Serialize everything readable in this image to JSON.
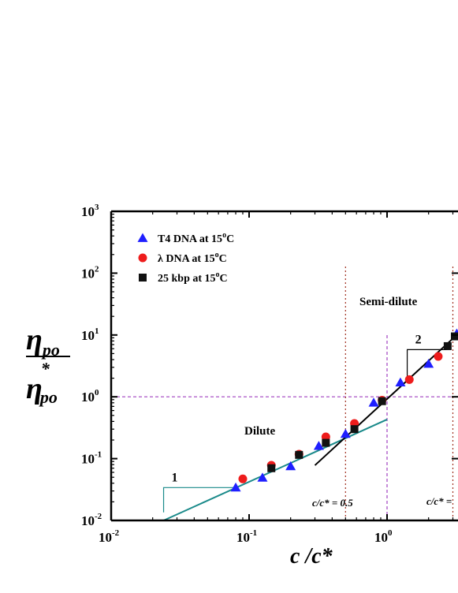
{
  "chart_data": {
    "type": "scatter",
    "x_scale": "log",
    "y_scale": "log",
    "xlim": [
      0.01,
      3.2
    ],
    "ylim": [
      0.01,
      1000
    ],
    "xlabel": "c /c*",
    "ylabel_numerator": "η",
    "ylabel_numerator_sub": "po",
    "ylabel_denominator": "η",
    "ylabel_denominator_sup": "*",
    "ylabel_denominator_sub": "po",
    "x_ticks": [
      {
        "value": 0.01,
        "base": "10",
        "exp": "-2"
      },
      {
        "value": 0.1,
        "base": "10",
        "exp": "-1"
      },
      {
        "value": 1,
        "base": "10",
        "exp": "0"
      }
    ],
    "y_ticks": [
      {
        "value": 0.01,
        "base": "10",
        "exp": "-2"
      },
      {
        "value": 0.1,
        "base": "10",
        "exp": "-1"
      },
      {
        "value": 1,
        "base": "10",
        "exp": "0"
      },
      {
        "value": 10,
        "base": "10",
        "exp": "1"
      },
      {
        "value": 100,
        "base": "10",
        "exp": "2"
      },
      {
        "value": 1000,
        "base": "10",
        "exp": "3"
      }
    ],
    "legend_position": "top-left",
    "series": [
      {
        "name": "T4 DNA at 15°C",
        "legend_main": "T4 DNA at 15",
        "marker": "triangle",
        "color": "#1f1fff",
        "points": [
          [
            0.08,
            0.034
          ],
          [
            0.125,
            0.049
          ],
          [
            0.2,
            0.075
          ],
          [
            0.32,
            0.16
          ],
          [
            0.5,
            0.25
          ],
          [
            0.8,
            0.8
          ],
          [
            1.25,
            1.7
          ],
          [
            2.0,
            3.4
          ],
          [
            3.2,
            10.5
          ]
        ]
      },
      {
        "name": "λ DNA at 15°C",
        "legend_main": "λ DNA at 15",
        "marker": "circle",
        "color": "#ee1c1c",
        "points": [
          [
            0.09,
            0.047
          ],
          [
            0.145,
            0.078
          ],
          [
            0.23,
            0.118
          ],
          [
            0.36,
            0.225
          ],
          [
            0.58,
            0.37
          ],
          [
            0.92,
            0.88
          ],
          [
            1.45,
            1.9
          ],
          [
            2.35,
            4.5
          ]
        ]
      },
      {
        "name": "25 kbp at 15°C",
        "legend_main": "25 kbp at 15",
        "marker": "square",
        "color": "#111111",
        "points": [
          [
            0.145,
            0.07
          ],
          [
            0.23,
            0.115
          ],
          [
            0.36,
            0.18
          ],
          [
            0.58,
            0.3
          ],
          [
            0.92,
            0.85
          ],
          [
            2.75,
            6.6
          ],
          [
            3.1,
            9.5
          ]
        ]
      }
    ],
    "degree_sup": "o",
    "degree_suffix": "C",
    "fit_lines": [
      {
        "label": "dilute-fit",
        "color": "#1a8a8a",
        "x": [
          0.024,
          1.0
        ],
        "y": [
          0.01,
          0.43
        ]
      },
      {
        "label": "semi-dilute-fit",
        "color": "#000000",
        "x": [
          0.3,
          3.2
        ],
        "y": [
          0.078,
          10.0
        ]
      }
    ],
    "slope_triangles": [
      {
        "label": "1",
        "color": "#1a8a8a",
        "x_left": 0.024,
        "x_right": 0.08,
        "y_low": 0.0135,
        "y_high": 0.034
      },
      {
        "label": "2",
        "color": "#000000",
        "x_left": 1.4,
        "x_right": 2.7,
        "y_low": 1.9,
        "y_high": 5.8
      }
    ],
    "reference_lines": [
      {
        "orientation": "horizontal",
        "value": 1,
        "color": "#a040c0",
        "style": "dashed"
      },
      {
        "orientation": "vertical",
        "value": 1,
        "color": "#a040c0",
        "style": "dashed",
        "y_top": 10
      },
      {
        "orientation": "vertical",
        "value": 0.5,
        "color": "#a03020",
        "style": "dotted",
        "y_top": 130
      },
      {
        "orientation": "vertical",
        "value": 3.0,
        "color": "#a03020",
        "style": "dotted",
        "y_top": 130
      }
    ],
    "annotations": {
      "dilute": "Dilute",
      "semi_dilute": "Semi-dilute",
      "c_half": "c/c* = 0.5",
      "c_three": "c/c* ="
    }
  }
}
